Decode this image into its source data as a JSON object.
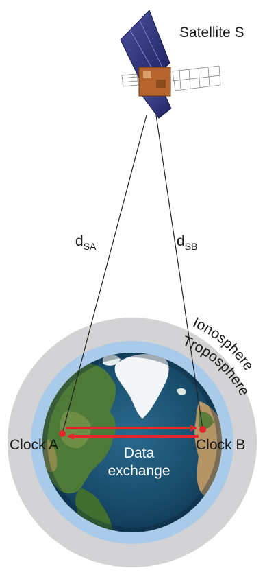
{
  "labels": {
    "satellite": "Satellite S",
    "d_sa_main": "d",
    "d_sa_sub": "SA",
    "d_sb_main": "d",
    "d_sb_sub": "SB",
    "ionosphere": "Ionosphere",
    "troposphere": "Troposphere",
    "clock_a": "Clock A",
    "clock_b": "Clock B",
    "data_exchange_line1": "Data",
    "data_exchange_line2": "exchange"
  },
  "colors": {
    "ionosphere": "#d3d3d5",
    "troposphere": "#a9cbe9",
    "ocean": "#1b4f6e",
    "arrow": "#e3262c",
    "clock_dot": "#e3262c",
    "signal_line": "#222222"
  }
}
